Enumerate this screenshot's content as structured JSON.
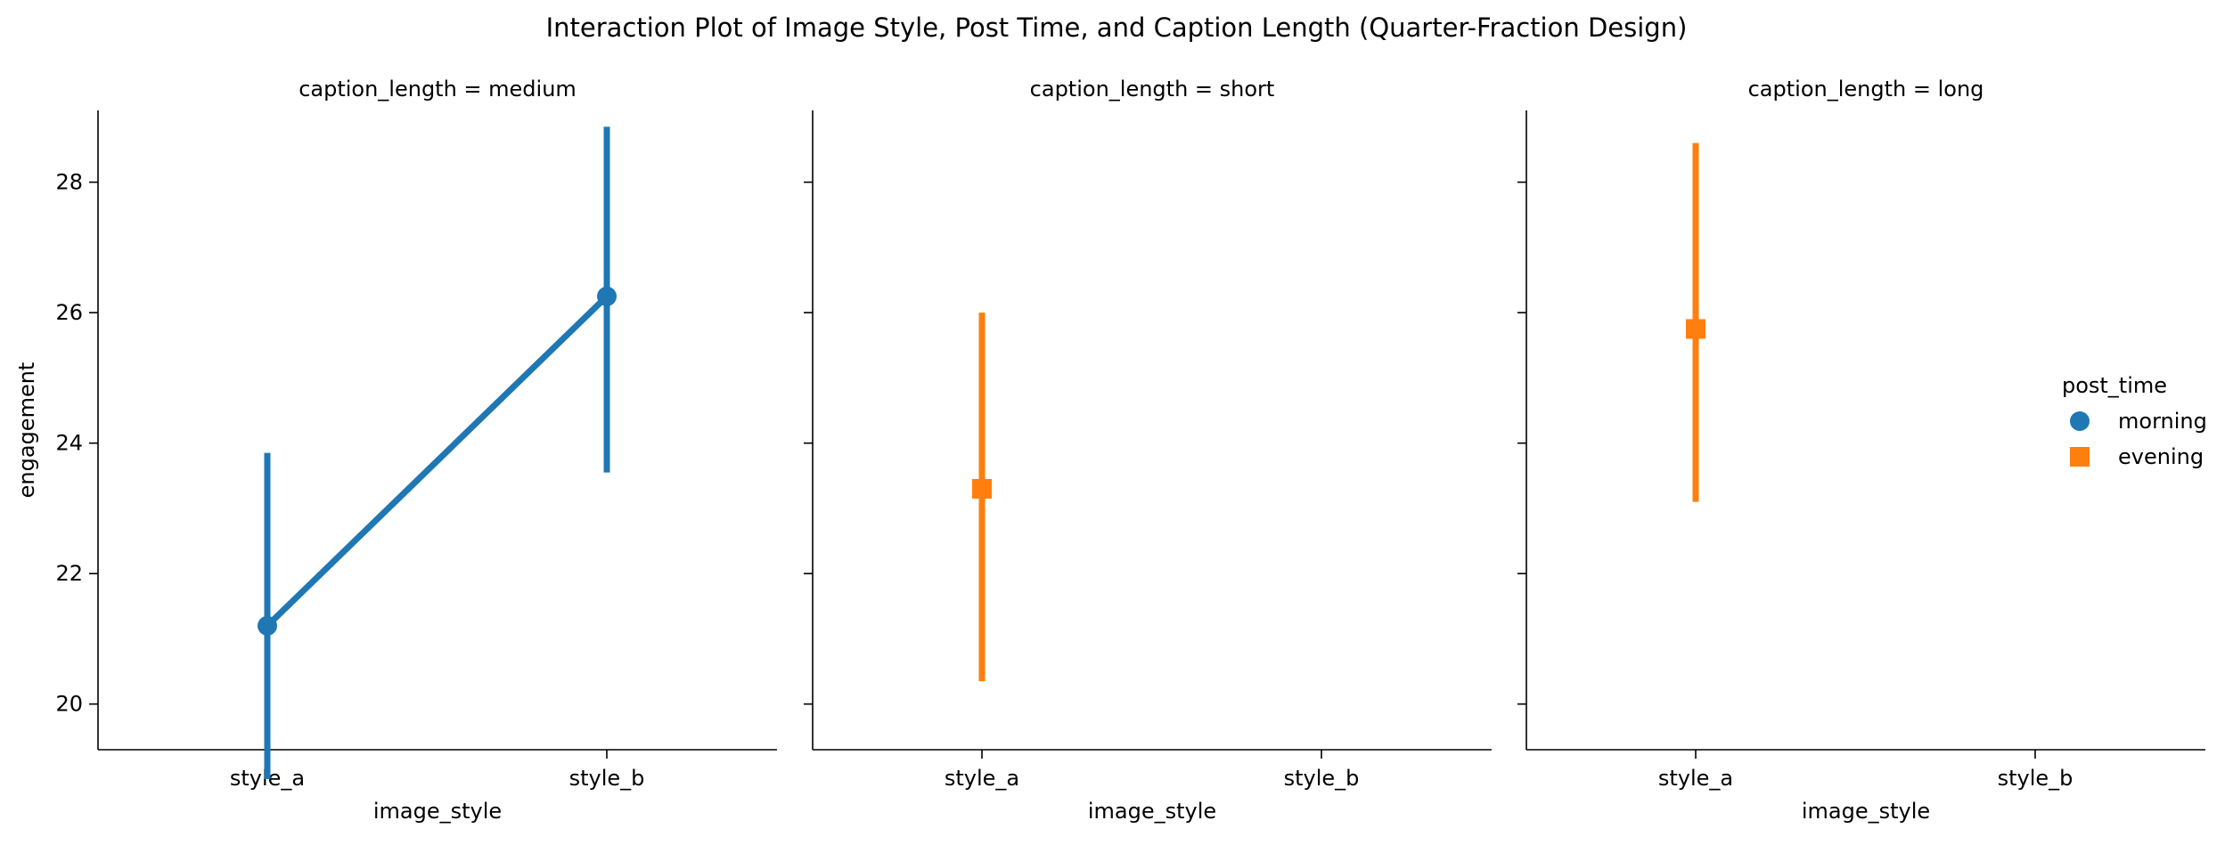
{
  "chart_data": {
    "type": "point",
    "title": "Interaction Plot of Image Style, Post Time, and Caption Length (Quarter-Fraction Design)",
    "xlabel": "image_style",
    "ylabel": "engagement",
    "categories": [
      "style_a",
      "style_b"
    ],
    "ylim": [
      19.3,
      29.1
    ],
    "yticks": [
      20,
      22,
      24,
      26,
      28
    ],
    "y_tick_labels": [
      "20",
      "22",
      "24",
      "26",
      "28"
    ],
    "grid": false,
    "legend": {
      "title": "post_time",
      "placement": "right",
      "entries": [
        {
          "label": "morning",
          "color": "#1f77b4",
          "marker": "circle"
        },
        {
          "label": "evening",
          "color": "#ff7f0e",
          "marker": "square"
        }
      ]
    },
    "panels": [
      {
        "title": "caption_length = medium",
        "series": [
          {
            "name": "morning",
            "color": "#1f77b4",
            "marker": "circle",
            "points": [
              {
                "x": "style_a",
                "y": 21.2,
                "ci": [
                  18.85,
                  23.85
                ]
              },
              {
                "x": "style_b",
                "y": 26.25,
                "ci": [
                  23.55,
                  28.85
                ]
              }
            ]
          }
        ]
      },
      {
        "title": "caption_length = short",
        "series": [
          {
            "name": "evening",
            "color": "#ff7f0e",
            "marker": "square",
            "points": [
              {
                "x": "style_a",
                "y": 23.3,
                "ci": [
                  20.35,
                  26.0
                ]
              }
            ]
          }
        ]
      },
      {
        "title": "caption_length = long",
        "series": [
          {
            "name": "evening",
            "color": "#ff7f0e",
            "marker": "square",
            "points": [
              {
                "x": "style_a",
                "y": 25.75,
                "ci": [
                  23.1,
                  28.6
                ]
              }
            ]
          }
        ]
      }
    ]
  }
}
